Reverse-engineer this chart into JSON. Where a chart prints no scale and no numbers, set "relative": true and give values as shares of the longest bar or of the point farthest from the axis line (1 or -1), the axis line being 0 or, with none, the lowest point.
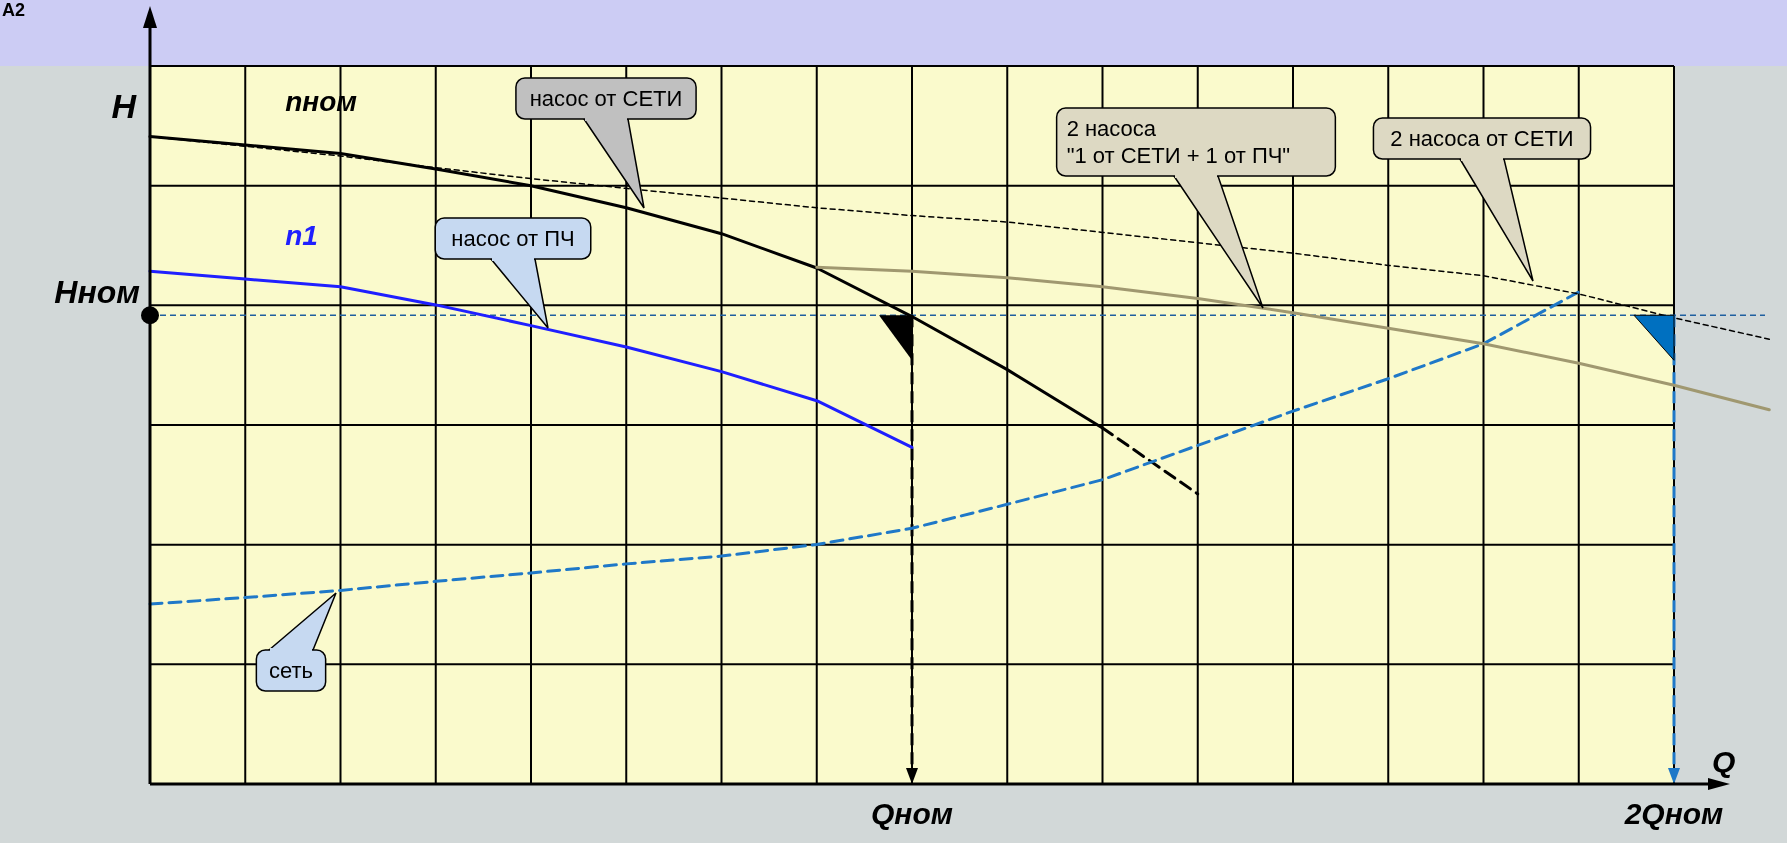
{
  "chart_data": {
    "type": "line",
    "relative": true,
    "xlabel": "Q",
    "ylabel": "H",
    "categories": [
      null,
      null,
      null,
      null,
      null,
      null,
      null,
      null,
      "Qном",
      null,
      null,
      null,
      null,
      null,
      null,
      null,
      "2Qном",
      null
    ],
    "grid": true,
    "marker": "none",
    "series": [
      {
        "name": "nном",
        "color": "#000000",
        "line_style": "solid",
        "values": [
          1.0,
          0.987,
          0.974,
          0.95,
          0.924,
          0.89,
          0.85,
          0.797,
          0.722,
          0.64,
          0.55,
          null,
          null,
          null,
          null,
          null,
          null,
          null
        ]
      },
      {
        "color": "#000000",
        "line_style": "dashed",
        "values": [
          null,
          null,
          null,
          null,
          null,
          null,
          null,
          null,
          null,
          null,
          0.55,
          0.448,
          null,
          null,
          null,
          null,
          null,
          null
        ]
      },
      {
        "name": "n1",
        "color": "#1f1fff",
        "line_style": "solid",
        "values": [
          0.792,
          0.78,
          0.768,
          0.74,
          0.708,
          0.675,
          0.637,
          0.592,
          0.52,
          null,
          null,
          null,
          null,
          null,
          null,
          null,
          null,
          null
        ]
      },
      {
        "color": "#1f78c8",
        "line_style": "dashed",
        "values": [
          0.278,
          0.288,
          0.299,
          0.313,
          0.326,
          0.34,
          0.352,
          0.37,
          0.395,
          0.432,
          0.47,
          0.523,
          0.576,
          0.626,
          0.68,
          0.76,
          null,
          null
        ]
      },
      {
        "color": "#000000",
        "line_style": "dotted",
        "values": [
          1.0,
          0.985,
          0.97,
          0.952,
          0.935,
          0.92,
          0.905,
          0.89,
          0.878,
          0.868,
          0.852,
          0.836,
          0.82,
          0.801,
          0.785,
          0.757,
          0.72,
          0.687
        ]
      },
      {
        "color": "#a09870",
        "line_style": "solid",
        "values": [
          null,
          null,
          null,
          null,
          null,
          null,
          null,
          0.798,
          0.792,
          0.782,
          0.768,
          0.75,
          0.728,
          0.704,
          0.68,
          0.65,
          0.616,
          0.578
        ]
      }
    ],
    "ref_lines": [
      {
        "axis": "y",
        "value": 0.724,
        "label": "Hном",
        "color": "#1f5f9f",
        "line_style": "dashed"
      },
      {
        "axis": "x",
        "value": "Qном",
        "label": null,
        "color": "#000000",
        "line_style": "dashed"
      },
      {
        "axis": "x",
        "value": "2Qном",
        "label": null,
        "color": "#1f78c8",
        "line_style": "dashed"
      }
    ],
    "annotations": [
      "насос от СЕТИ",
      "насос от ПЧ",
      "2 насоса\n\"1 от СЕТИ + 1 от ПЧ\"",
      "2 насоса от СЕТИ",
      "сеть",
      "А2"
    ]
  }
}
